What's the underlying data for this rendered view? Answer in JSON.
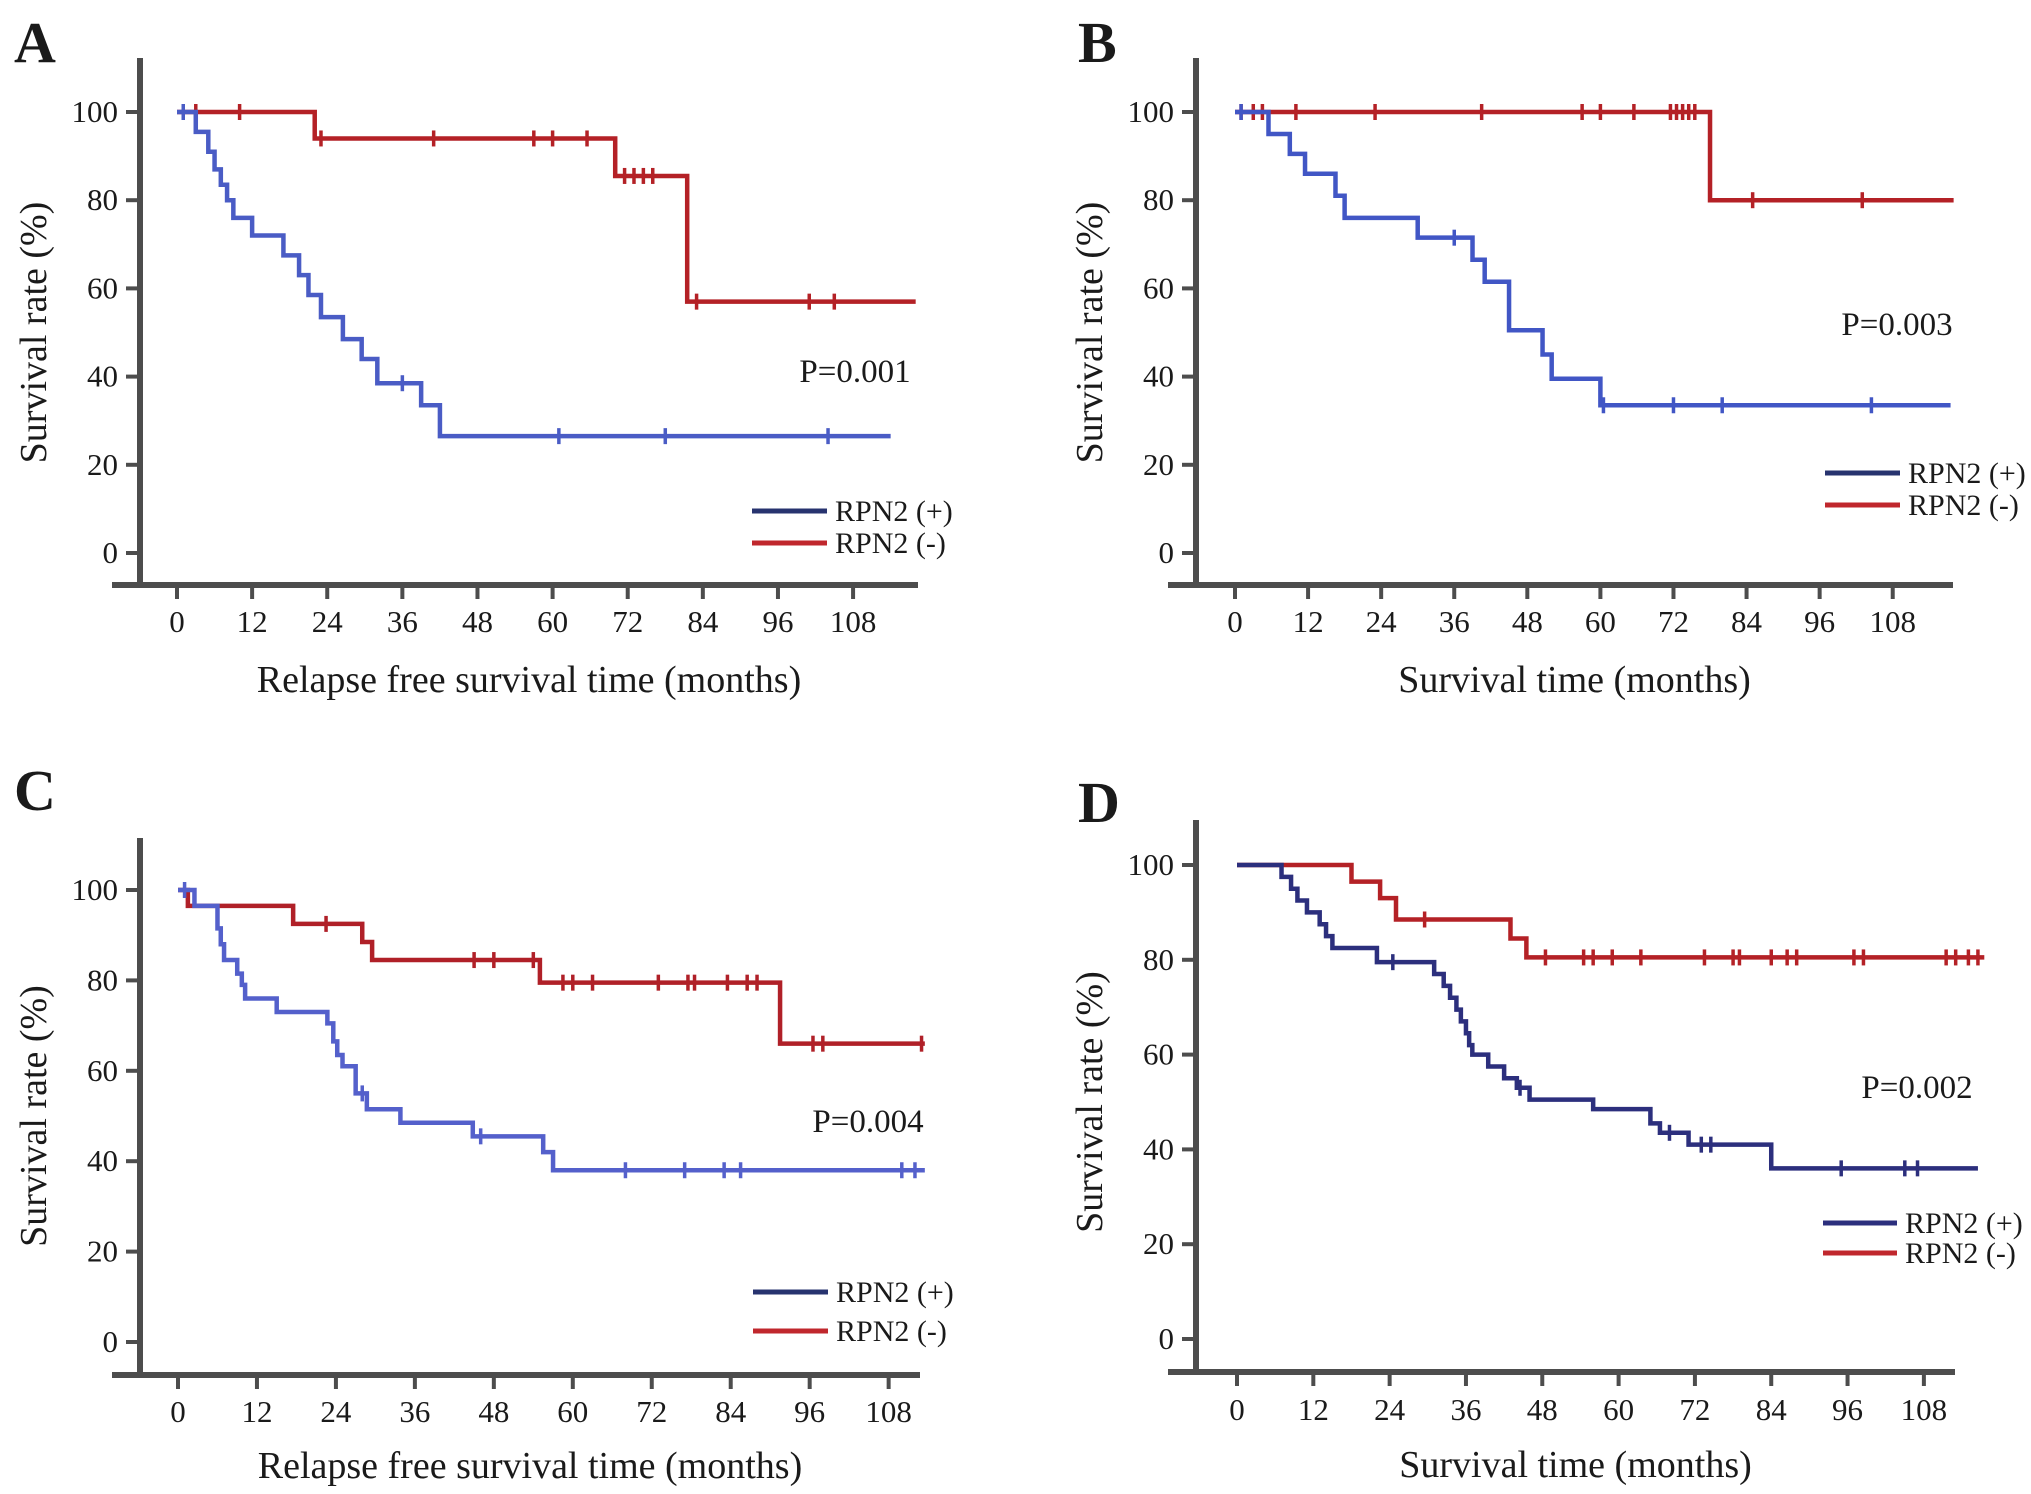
{
  "figure": {
    "background": "#ffffff",
    "description": "Kaplan-Meier survival curves, four panels A-D, RPN2 positive vs negative groups"
  },
  "colors": {
    "axis": "#4d4d4d",
    "text": "#1a1a1a",
    "red_curve": "#b42126",
    "legend_red": "#c0272d",
    "blue_curve_light": "#4a5cc5",
    "blue_curve_navy": "#2c2f7d",
    "legend_blue_dark": "#27336f"
  },
  "chart_data": [
    {
      "type": "line",
      "subtype": "kaplan-meier-step",
      "panel_letter": "A",
      "xlabel": "Relapse free survival time (months)",
      "ylabel": "Survival rate (%)",
      "p_value_label": "P=0.001",
      "x_ticks": [
        0,
        12,
        24,
        36,
        48,
        60,
        72,
        84,
        96,
        108
      ],
      "y_ticks": [
        0,
        20,
        40,
        60,
        80,
        100
      ],
      "xlim": [
        0,
        118
      ],
      "ylim": [
        0,
        100
      ],
      "legend_position": "bottom-right",
      "legend": [
        {
          "label": "RPN2 (+)",
          "color": "#27336f"
        },
        {
          "label": "RPN2 (-)",
          "color": "#c0272d"
        }
      ],
      "series": [
        {
          "name": "RPN2 (+)",
          "color": "#4a5cc5",
          "end_month": 114,
          "steps": [
            [
              0,
              100
            ],
            [
              3,
              95.5
            ],
            [
              5,
              91
            ],
            [
              6,
              87
            ],
            [
              7,
              83.5
            ],
            [
              8,
              80
            ],
            [
              9,
              76
            ],
            [
              12,
              72
            ],
            [
              17,
              67.5
            ],
            [
              19.5,
              63
            ],
            [
              21,
              58.5
            ],
            [
              23,
              53.5
            ],
            [
              26.5,
              48.5
            ],
            [
              29.5,
              44
            ],
            [
              32,
              38.5
            ],
            [
              39,
              33.5
            ],
            [
              42,
              26.5
            ]
          ],
          "censors": [
            [
              1,
              100
            ],
            [
              36,
              38.5
            ],
            [
              61,
              26.5
            ],
            [
              78,
              26.5
            ],
            [
              104,
              26.5
            ]
          ]
        },
        {
          "name": "RPN2 (-)",
          "color": "#b42126",
          "end_month": 118,
          "steps": [
            [
              0,
              100
            ],
            [
              22,
              94
            ],
            [
              70,
              85.5
            ],
            [
              81.5,
              57
            ]
          ],
          "censors": [
            [
              3,
              100
            ],
            [
              10,
              100
            ],
            [
              23,
              94
            ],
            [
              41,
              94
            ],
            [
              57,
              94
            ],
            [
              60,
              94
            ],
            [
              65.5,
              94
            ],
            [
              71.5,
              85.5
            ],
            [
              73,
              85.5
            ],
            [
              74.5,
              85.5
            ],
            [
              76,
              85.5
            ],
            [
              83,
              57
            ],
            [
              101,
              57
            ],
            [
              105,
              57
            ]
          ]
        }
      ]
    },
    {
      "type": "line",
      "subtype": "kaplan-meier-step",
      "panel_letter": "B",
      "xlabel": "Survival time (months)",
      "ylabel": "Survival rate (%)",
      "p_value_label": "P=0.003",
      "x_ticks": [
        0,
        12,
        24,
        36,
        48,
        60,
        72,
        84,
        96,
        108
      ],
      "y_ticks": [
        0,
        20,
        40,
        60,
        80,
        100
      ],
      "xlim": [
        0,
        118
      ],
      "ylim": [
        0,
        100
      ],
      "legend_position": "bottom-right",
      "legend": [
        {
          "label": "RPN2 (+)",
          "color": "#27336f"
        },
        {
          "label": "RPN2 (-)",
          "color": "#c0272d"
        }
      ],
      "series": [
        {
          "name": "RPN2 (+)",
          "color": "#4156c5",
          "end_month": 117.5,
          "steps": [
            [
              0,
              100
            ],
            [
              5.5,
              95
            ],
            [
              9,
              90.5
            ],
            [
              11.5,
              86
            ],
            [
              16.5,
              81
            ],
            [
              18,
              76
            ],
            [
              30,
              71.5
            ],
            [
              39,
              66.5
            ],
            [
              41,
              61.5
            ],
            [
              45,
              50.5
            ],
            [
              50.5,
              45
            ],
            [
              52,
              39.5
            ],
            [
              60,
              33.5
            ]
          ],
          "censors": [
            [
              1,
              100
            ],
            [
              36,
              71.5
            ],
            [
              60.5,
              33.5
            ],
            [
              72,
              33.5
            ],
            [
              80,
              33.5
            ],
            [
              104.5,
              33.5
            ]
          ]
        },
        {
          "name": "RPN2 (-)",
          "color": "#b42126",
          "end_month": 118,
          "steps": [
            [
              0,
              100
            ],
            [
              78,
              80
            ]
          ],
          "censors": [
            [
              1,
              100
            ],
            [
              3,
              100
            ],
            [
              4.5,
              100
            ],
            [
              10,
              100
            ],
            [
              23,
              100
            ],
            [
              40.5,
              100
            ],
            [
              57,
              100
            ],
            [
              60,
              100
            ],
            [
              65.5,
              100
            ],
            [
              71.5,
              100
            ],
            [
              72.5,
              100
            ],
            [
              73.5,
              100
            ],
            [
              74.5,
              100
            ],
            [
              75.5,
              100
            ],
            [
              85,
              80
            ],
            [
              103,
              80
            ]
          ]
        }
      ]
    },
    {
      "type": "line",
      "subtype": "kaplan-meier-step",
      "panel_letter": "C",
      "xlabel": "Relapse free survival time (months)",
      "ylabel": "Survival rate (%)",
      "p_value_label": "P=0.004",
      "x_ticks": [
        0,
        12,
        24,
        36,
        48,
        60,
        72,
        84,
        96,
        108
      ],
      "y_ticks": [
        0,
        20,
        40,
        60,
        80,
        100
      ],
      "xlim": [
        0,
        118
      ],
      "ylim": [
        0,
        100
      ],
      "legend_position": "bottom-right",
      "legend": [
        {
          "label": "RPN2 (+)",
          "color": "#27336f"
        },
        {
          "label": "RPN2 (-)",
          "color": "#c0272d"
        }
      ],
      "series": [
        {
          "name": "RPN2 (+)",
          "color": "#5460cb",
          "end_month": 113.5,
          "steps": [
            [
              0,
              100
            ],
            [
              2.5,
              96.5
            ],
            [
              6,
              91.5
            ],
            [
              6.5,
              88
            ],
            [
              7,
              84.5
            ],
            [
              9,
              81.5
            ],
            [
              9.7,
              79
            ],
            [
              10.2,
              76
            ],
            [
              15,
              73
            ],
            [
              22.7,
              70.5
            ],
            [
              23.6,
              66.5
            ],
            [
              24.2,
              63.5
            ],
            [
              25,
              61
            ],
            [
              27,
              55
            ],
            [
              28.7,
              51.5
            ],
            [
              33.8,
              48.5
            ],
            [
              44.8,
              45.5
            ],
            [
              55.5,
              42
            ],
            [
              57,
              38
            ]
          ],
          "censors": [
            [
              1,
              100
            ],
            [
              28,
              55
            ],
            [
              46,
              45.5
            ],
            [
              68,
              38
            ],
            [
              77,
              38
            ],
            [
              83,
              38
            ],
            [
              85.5,
              38
            ],
            [
              110,
              38
            ],
            [
              112,
              38
            ]
          ]
        },
        {
          "name": "RPN2 (-)",
          "color": "#b02028",
          "end_month": 113.5,
          "steps": [
            [
              0,
              100
            ],
            [
              1.5,
              96.5
            ],
            [
              17.5,
              92.5
            ],
            [
              28,
              88.5
            ],
            [
              29.5,
              84.5
            ],
            [
              55,
              79.5
            ],
            [
              91.5,
              66
            ]
          ],
          "censors": [
            [
              22.5,
              92.5
            ],
            [
              45,
              84.5
            ],
            [
              48,
              84.5
            ],
            [
              54,
              84.5
            ],
            [
              58.5,
              79.5
            ],
            [
              60,
              79.5
            ],
            [
              63,
              79.5
            ],
            [
              73,
              79.5
            ],
            [
              77.5,
              79.5
            ],
            [
              78.5,
              79.5
            ],
            [
              83.5,
              79.5
            ],
            [
              86.5,
              79.5
            ],
            [
              88,
              79.5
            ],
            [
              96.5,
              66
            ],
            [
              98,
              66
            ],
            [
              113,
              66
            ]
          ]
        }
      ]
    },
    {
      "type": "line",
      "subtype": "kaplan-meier-step",
      "panel_letter": "D",
      "xlabel": "Survival time (months)",
      "ylabel": "Survival rate (%)",
      "p_value_label": "P=0.002",
      "x_ticks": [
        0,
        12,
        24,
        36,
        48,
        60,
        72,
        84,
        96,
        108
      ],
      "y_ticks": [
        0,
        20,
        40,
        60,
        80,
        100
      ],
      "xlim": [
        0,
        118
      ],
      "ylim": [
        0,
        100
      ],
      "legend_position": "bottom-right",
      "legend": [
        {
          "label": "RPN2 (+)",
          "color": "#2c2f7d"
        },
        {
          "label": "RPN2 (-)",
          "color": "#c0272d"
        }
      ],
      "series": [
        {
          "name": "RPN2 (+)",
          "color": "#2c2f7d",
          "end_month": 116.5,
          "steps": [
            [
              0,
              100
            ],
            [
              7,
              97.5
            ],
            [
              8.5,
              95
            ],
            [
              9.5,
              92.5
            ],
            [
              11,
              90
            ],
            [
              13,
              87.5
            ],
            [
              14,
              85
            ],
            [
              15,
              82.5
            ],
            [
              22,
              79.5
            ],
            [
              31,
              77
            ],
            [
              32.5,
              74.5
            ],
            [
              33.5,
              72
            ],
            [
              34.5,
              69.5
            ],
            [
              35.2,
              67
            ],
            [
              36,
              64.5
            ],
            [
              36.5,
              62
            ],
            [
              37,
              60
            ],
            [
              39.5,
              57.5
            ],
            [
              42,
              55
            ],
            [
              44,
              53
            ],
            [
              46,
              50.5
            ],
            [
              56,
              48.5
            ],
            [
              65,
              45.5
            ],
            [
              66.5,
              43.5
            ],
            [
              71,
              41
            ],
            [
              84,
              36
            ]
          ],
          "censors": [
            [
              24.5,
              79.5
            ],
            [
              44.5,
              53
            ],
            [
              68,
              43.5
            ],
            [
              73,
              41
            ],
            [
              74.5,
              41
            ],
            [
              95,
              36
            ],
            [
              105,
              36
            ],
            [
              107,
              36
            ]
          ]
        },
        {
          "name": "RPN2 (-)",
          "color": "#b42126",
          "end_month": 117.5,
          "steps": [
            [
              0,
              100
            ],
            [
              18,
              96.5
            ],
            [
              22.5,
              93
            ],
            [
              25,
              88.5
            ],
            [
              43,
              84.5
            ],
            [
              45.5,
              80.5
            ]
          ],
          "censors": [
            [
              29.5,
              88.5
            ],
            [
              48.5,
              80.5
            ],
            [
              54.5,
              80.5
            ],
            [
              56,
              80.5
            ],
            [
              59,
              80.5
            ],
            [
              63.5,
              80.5
            ],
            [
              73.5,
              80.5
            ],
            [
              78,
              80.5
            ],
            [
              79,
              80.5
            ],
            [
              84,
              80.5
            ],
            [
              86.5,
              80.5
            ],
            [
              88,
              80.5
            ],
            [
              97,
              80.5
            ],
            [
              98.5,
              80.5
            ],
            [
              111.5,
              80.5
            ],
            [
              113,
              80.5
            ],
            [
              115,
              80.5
            ],
            [
              116.5,
              80.5
            ]
          ]
        }
      ]
    }
  ]
}
